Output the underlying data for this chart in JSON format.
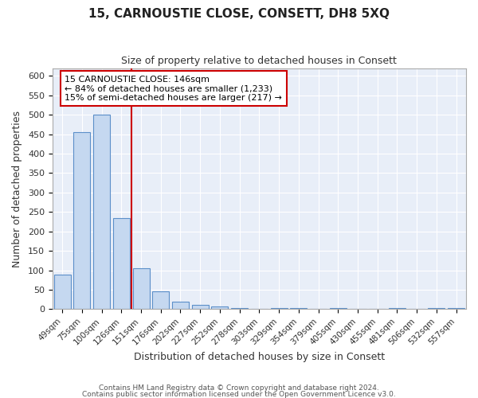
{
  "title": "15, CARNOUSTIE CLOSE, CONSETT, DH8 5XQ",
  "subtitle": "Size of property relative to detached houses in Consett",
  "xlabel": "Distribution of detached houses by size in Consett",
  "ylabel": "Number of detached properties",
  "bar_color": "#c5d8f0",
  "bar_edge_color": "#5b8fc9",
  "plot_bg_color": "#e8eef8",
  "fig_bg_color": "#ffffff",
  "grid_color": "#ffffff",
  "categories": [
    "49sqm",
    "75sqm",
    "100sqm",
    "126sqm",
    "151sqm",
    "176sqm",
    "202sqm",
    "227sqm",
    "252sqm",
    "278sqm",
    "303sqm",
    "329sqm",
    "354sqm",
    "379sqm",
    "405sqm",
    "430sqm",
    "455sqm",
    "481sqm",
    "506sqm",
    "532sqm",
    "557sqm"
  ],
  "values": [
    88,
    455,
    500,
    235,
    105,
    45,
    20,
    12,
    8,
    2,
    0,
    3,
    3,
    0,
    2,
    0,
    0,
    2,
    0,
    2,
    2
  ],
  "annotation_line1": "15 CARNOUSTIE CLOSE: 146sqm",
  "annotation_line2": "← 84% of detached houses are smaller (1,233)",
  "annotation_line3": "15% of semi-detached houses are larger (217) →",
  "footer1": "Contains HM Land Registry data © Crown copyright and database right 2024.",
  "footer2": "Contains public sector information licensed under the Open Government Licence v3.0.",
  "ylim": [
    0,
    620
  ],
  "yticks": [
    0,
    50,
    100,
    150,
    200,
    250,
    300,
    350,
    400,
    450,
    500,
    550,
    600
  ],
  "red_line_index": 3.5
}
